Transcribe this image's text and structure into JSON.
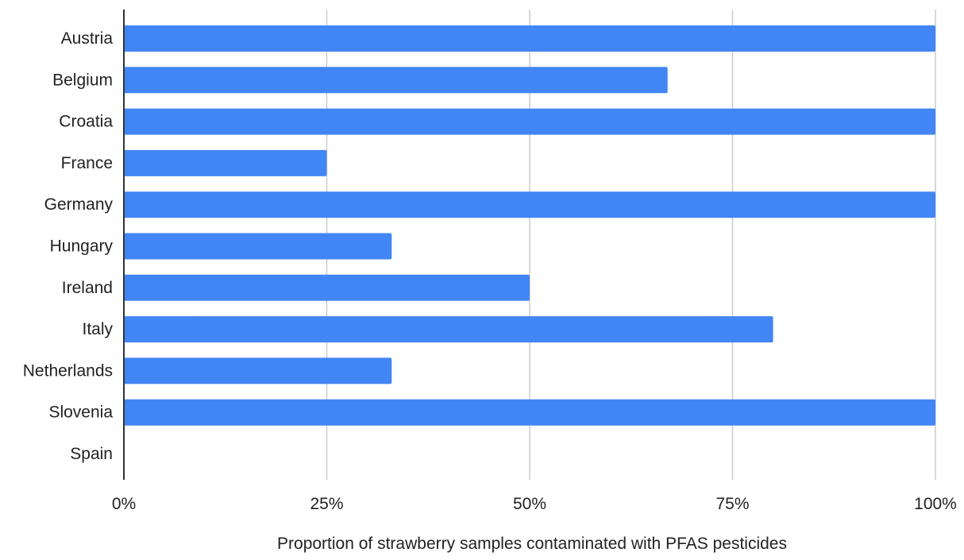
{
  "chart_data": {
    "type": "bar",
    "orientation": "horizontal",
    "categories": [
      "Austria",
      "Belgium",
      "Croatia",
      "France",
      "Germany",
      "Hungary",
      "Ireland",
      "Italy",
      "Netherlands",
      "Slovenia",
      "Spain"
    ],
    "values": [
      1.0,
      0.67,
      1.0,
      0.25,
      1.0,
      0.33,
      0.5,
      0.8,
      0.33,
      1.0,
      0.0
    ],
    "xlim": [
      0,
      1
    ],
    "x_ticks": [
      0,
      0.25,
      0.5,
      0.75,
      1.0
    ],
    "x_tick_labels": [
      "0%",
      "25%",
      "50%",
      "75%",
      "100%"
    ],
    "xlabel": "Proportion of strawberry samples contaminated with PFAS pesticides",
    "ylabel": "",
    "title": "",
    "grid": true,
    "legend": "none",
    "colors": {
      "bar": "#4285f4",
      "grid": "#cccccc",
      "axis": "#333333",
      "text": "#222222"
    }
  }
}
